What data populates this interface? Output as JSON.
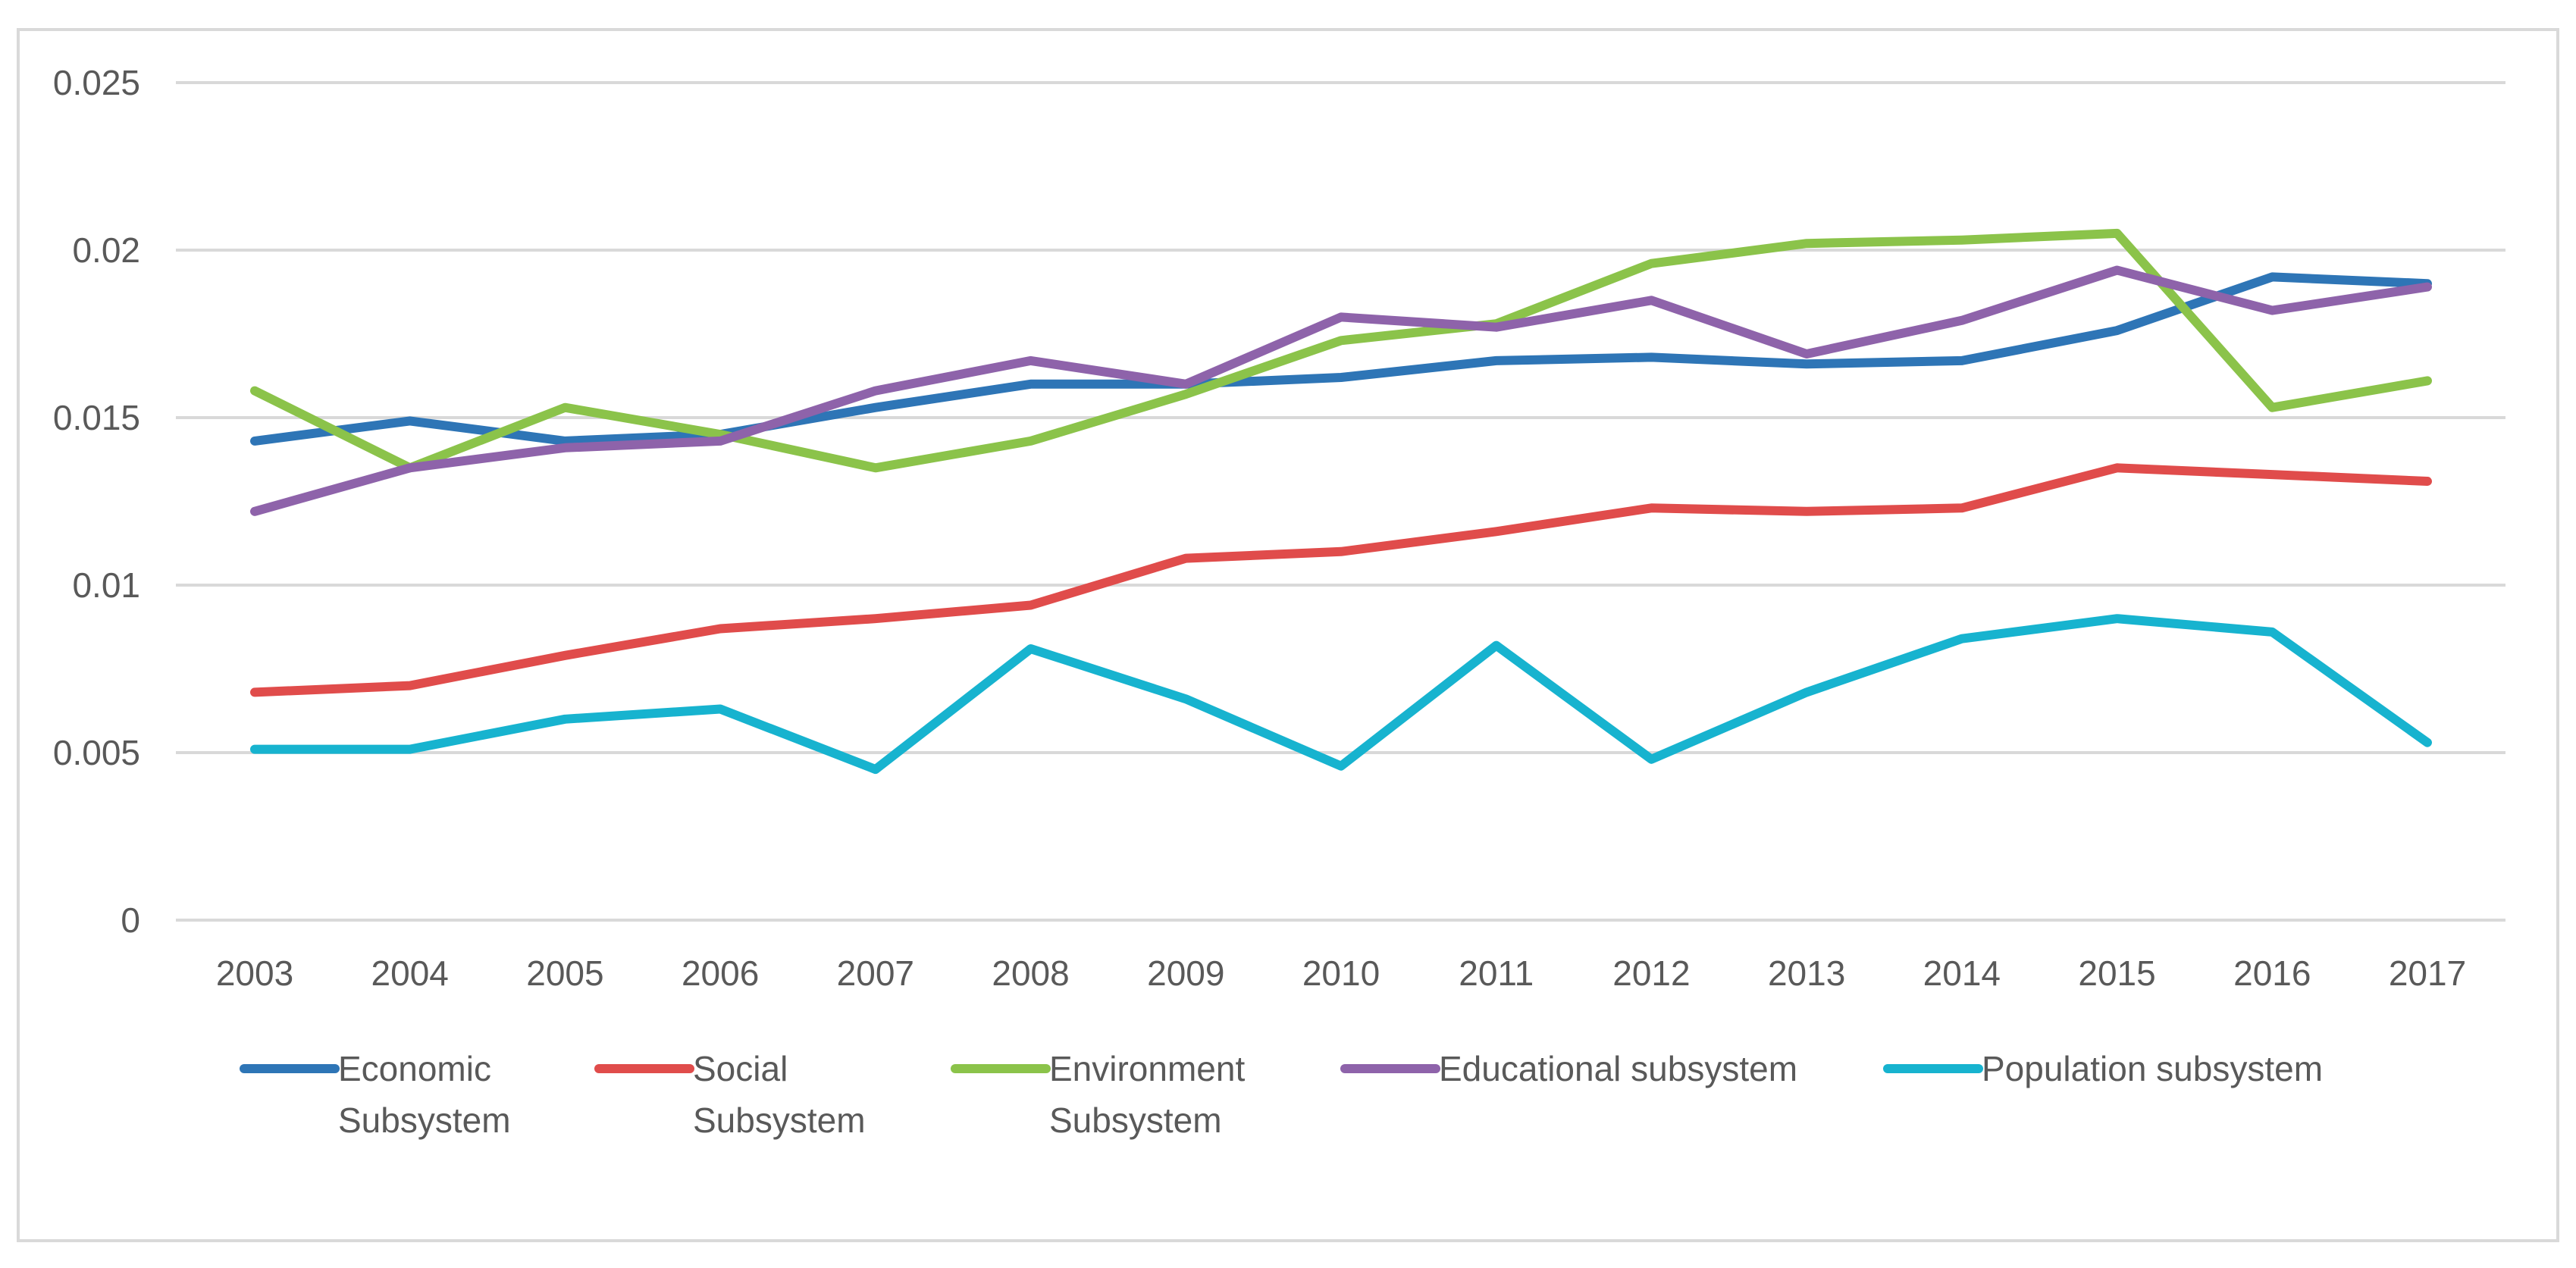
{
  "chart_data": {
    "type": "line",
    "title": "",
    "xlabel": "",
    "ylabel": "",
    "ylim": [
      0,
      0.025
    ],
    "yticks": [
      {
        "value": 0,
        "label": "0"
      },
      {
        "value": 0.005,
        "label": "0.005"
      },
      {
        "value": 0.01,
        "label": "0.01"
      },
      {
        "value": 0.015,
        "label": "0.015"
      },
      {
        "value": 0.02,
        "label": "0.02"
      },
      {
        "value": 0.025,
        "label": "0.025"
      }
    ],
    "grid": true,
    "legend_position": "bottom",
    "categories": [
      "2003",
      "2004",
      "2005",
      "2006",
      "2007",
      "2008",
      "2009",
      "2010",
      "2011",
      "2012",
      "2013",
      "2014",
      "2015",
      "2016",
      "2017"
    ],
    "series": [
      {
        "name": "Economic Subsystem",
        "legend_lines": [
          "Economic",
          "Subsystem"
        ],
        "color": "#2e75b6",
        "values": [
          0.0143,
          0.0149,
          0.0143,
          0.0145,
          0.0153,
          0.016,
          0.016,
          0.0162,
          0.0167,
          0.0168,
          0.0166,
          0.0167,
          0.0176,
          0.0192,
          0.019
        ]
      },
      {
        "name": "Social Subsystem",
        "legend_lines": [
          "Social",
          "Subsystem"
        ],
        "color": "#e04c4b",
        "values": [
          0.0068,
          0.007,
          0.0079,
          0.0087,
          0.009,
          0.0094,
          0.0108,
          0.011,
          0.0116,
          0.0123,
          0.0122,
          0.0123,
          0.0135,
          0.0133,
          0.0131
        ]
      },
      {
        "name": "Environment Subsystem",
        "legend_lines": [
          "Environment",
          "Subsystem"
        ],
        "color": "#8bc34a",
        "values": [
          0.0158,
          0.0135,
          0.0153,
          0.0145,
          0.0135,
          0.0143,
          0.0157,
          0.0173,
          0.0178,
          0.0196,
          0.0202,
          0.0203,
          0.0205,
          0.0153,
          0.0161
        ]
      },
      {
        "name": "Educational subsystem",
        "legend_lines": [
          "Educational subsystem"
        ],
        "color": "#8e63aa",
        "values": [
          0.0122,
          0.0135,
          0.0141,
          0.0143,
          0.0158,
          0.0167,
          0.016,
          0.018,
          0.0177,
          0.0185,
          0.0169,
          0.0179,
          0.0194,
          0.0182,
          0.0189
        ]
      },
      {
        "name": "Population subsystem",
        "legend_lines": [
          "Population subsystem"
        ],
        "color": "#17b3cf",
        "values": [
          0.0051,
          0.0051,
          0.006,
          0.0063,
          0.0045,
          0.0081,
          0.0066,
          0.0046,
          0.0082,
          0.0048,
          0.0068,
          0.0084,
          0.009,
          0.0086,
          0.0053
        ]
      }
    ]
  }
}
